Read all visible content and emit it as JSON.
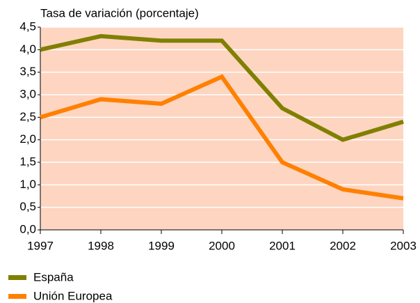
{
  "chart_data": {
    "type": "line",
    "title": "Tasa de variación (porcentaje)",
    "x": [
      1997,
      1998,
      1999,
      2000,
      2001,
      2002,
      2003
    ],
    "xlim": [
      1997,
      2003
    ],
    "xticks": [
      1997,
      1998,
      1999,
      2000,
      2001,
      2002,
      2003
    ],
    "ylim": [
      0,
      4.5
    ],
    "yticks": [
      {
        "value": 0,
        "label": "0,0"
      },
      {
        "value": 0.5,
        "label": "0,5"
      },
      {
        "value": 1,
        "label": "1,0"
      },
      {
        "value": 1.5,
        "label": "1,5"
      },
      {
        "value": 2,
        "label": "2,0"
      },
      {
        "value": 2.5,
        "label": "2,5"
      },
      {
        "value": 3,
        "label": "3,0"
      },
      {
        "value": 3.5,
        "label": "3,5"
      },
      {
        "value": 4,
        "label": "4,0"
      },
      {
        "value": 4.5,
        "label": "4,5"
      }
    ],
    "grid": true,
    "legend": "bottom-left",
    "background": "#fdd5c1",
    "series": [
      {
        "name": "España",
        "color": "#808000",
        "values": [
          4.0,
          4.3,
          4.2,
          4.2,
          2.7,
          2.0,
          2.4
        ]
      },
      {
        "name": "Unión Europea",
        "color": "#ff8000",
        "values": [
          2.5,
          2.9,
          2.8,
          3.4,
          1.5,
          0.9,
          0.7
        ]
      }
    ]
  }
}
